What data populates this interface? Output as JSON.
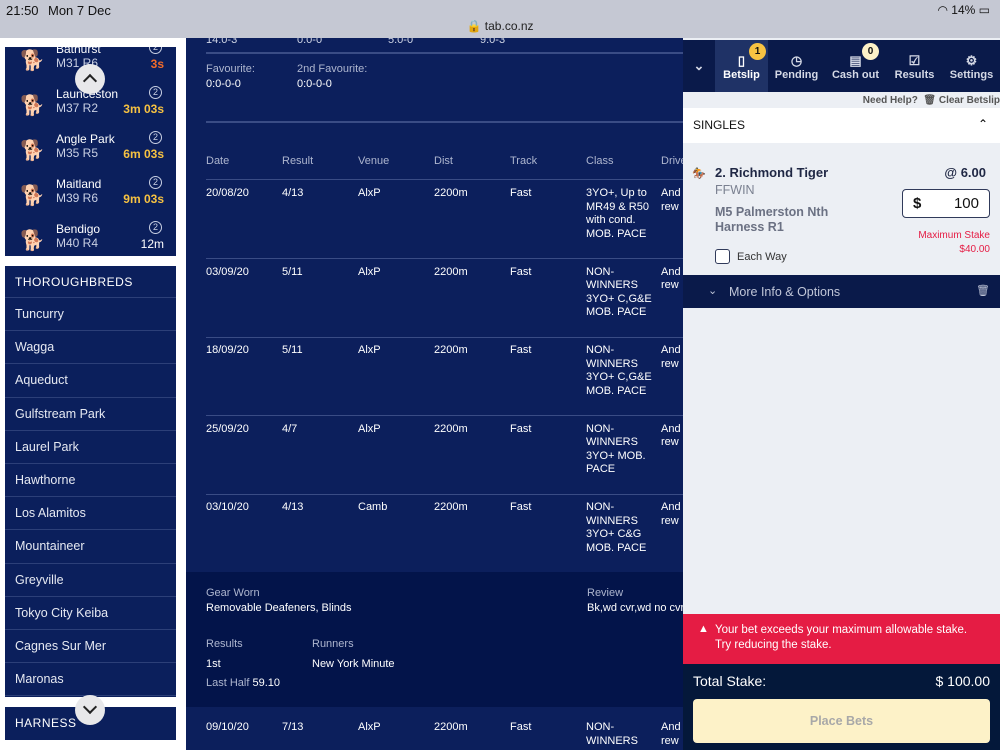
{
  "status_bar": {
    "time": "21:50",
    "date": "Mon 7 Dec",
    "url": "tab.co.nz",
    "battery": "14%"
  },
  "greyhounds": [
    {
      "venue": "Bathurst",
      "race": "M31 R6",
      "badge": "2",
      "countdown": "3s",
      "countdown_color": "#f26b2a"
    },
    {
      "venue": "Launceston",
      "race": "M37 R2",
      "badge": "2",
      "countdown": "3m 03s",
      "countdown_color": "#f7c242"
    },
    {
      "venue": "Angle Park",
      "race": "M35 R5",
      "badge": "2",
      "countdown": "6m 03s",
      "countdown_color": "#f7c242"
    },
    {
      "venue": "Maitland",
      "race": "M39 R6",
      "badge": "2",
      "countdown": "9m 03s",
      "countdown_color": "#f7c242"
    },
    {
      "venue": "Bendigo",
      "race": "M40 R4",
      "badge": "2",
      "countdown": "12m",
      "countdown_color": "#ffffff"
    }
  ],
  "thoroughbreds": {
    "header": "THOROUGHBREDS",
    "items": [
      "Tuncurry",
      "Wagga",
      "Aqueduct",
      "Gulfstream Park",
      "Laurel Park",
      "Hawthorne",
      "Los Alamitos",
      "Mountaineer",
      "Greyville",
      "Tokyo City Keiba",
      "Cagnes Sur Mer",
      "Maronas"
    ]
  },
  "harness": {
    "header": "HARNESS"
  },
  "main": {
    "stats": [
      "14:0-3",
      "0:0-0",
      "5:0-0",
      "9:0-3"
    ],
    "favourite_label": "Favourite:",
    "favourite_value": "0:0-0-0",
    "second_fav_label": "2nd Favourite:",
    "second_fav_value": "0:0-0-0",
    "columns": [
      "Date",
      "Result",
      "Venue",
      "Dist",
      "Track",
      "Class",
      "Driver"
    ],
    "rows": [
      [
        "20/08/20",
        "4/13",
        "AlxP",
        "2200m",
        "Fast",
        "3YO+, Up to MR49 & R50 with cond. MOB. PACE",
        "Andrew Drake"
      ],
      [
        "03/09/20",
        "5/11",
        "AlxP",
        "2200m",
        "Fast",
        "NON-WINNERS 3YO+ C,G&E MOB. PACE",
        "Andrew Drake"
      ],
      [
        "18/09/20",
        "5/11",
        "AlxP",
        "2200m",
        "Fast",
        "NON-WINNERS 3YO+ C,G&E MOB. PACE",
        "Andrew Drake"
      ],
      [
        "25/09/20",
        "4/7",
        "AlxP",
        "2200m",
        "Fast",
        "NON-WINNERS 3YO+ MOB. PACE",
        "Andrew Drake"
      ],
      [
        "03/10/20",
        "4/13",
        "Camb",
        "2200m",
        "Fast",
        "NON-WINNERS 3YO+ C&G MOB. PACE",
        "Andrew Drake"
      ]
    ],
    "detail": {
      "gear_label": "Gear Worn",
      "gear_value": "Removable Deafeners, Blinds",
      "review_label": "Review",
      "review_value": "Bk,wd cvr,wd no cvr",
      "results_label": "Results",
      "results_value": "1st",
      "runners_label": "Runners",
      "runners_value": "New York Minute",
      "last_half_label": "Last Half",
      "last_half_value": "59.10"
    },
    "last_row": [
      "09/10/20",
      "7/13",
      "AlxP",
      "2200m",
      "Fast",
      "NON-WINNERS",
      "Andrew Drake"
    ]
  },
  "betslip": {
    "tabs": [
      {
        "label": "Betslip",
        "icon": "betslip-icon",
        "badge": "1"
      },
      {
        "label": "Pending",
        "icon": "pending-icon"
      },
      {
        "label": "Cash out",
        "icon": "cashout-icon",
        "badge": "0"
      },
      {
        "label": "Results",
        "icon": "results-icon"
      },
      {
        "label": "Settings",
        "icon": "gear-icon"
      }
    ],
    "need_help": "Need Help?",
    "clear": "Clear Betslip",
    "section": "SINGLES",
    "selection": "2. Richmond Tiger",
    "bet_type": "FFWIN",
    "race": "M5 Palmerston Nth Harness R1",
    "odds": "@ 6.00",
    "currency": "$",
    "stake": "100",
    "max_stake_label": "Maximum Stake",
    "max_stake_value": "$40.00",
    "each_way": "Each Way",
    "each_way_checked": false,
    "more_info": "More Info & Options",
    "error": "Your bet exceeds your maximum allowable stake. Try reducing the stake.",
    "total_label": "Total Stake:",
    "total_value": "$ 100.00",
    "place_bets": "Place Bets",
    "colors": {
      "error": "#e51c44",
      "navy": "#0a1a4a",
      "place_bg": "#fdf2c8",
      "badge": "#f7c242"
    }
  }
}
